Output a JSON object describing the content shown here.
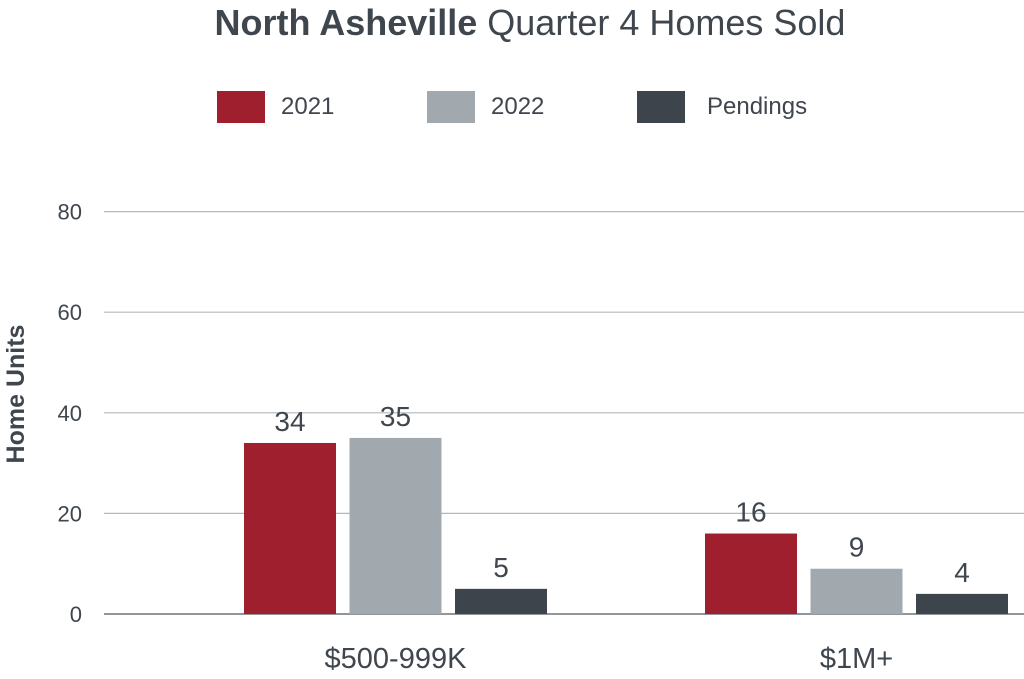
{
  "chart_data": {
    "type": "bar",
    "title_bold": "North Asheville",
    "title_rest": " Quarter 4 Homes Sold",
    "ylabel": "Home Units",
    "xlabel": "",
    "ylim": [
      0,
      80
    ],
    "yticks": [
      "0",
      "20",
      "40",
      "60",
      "80"
    ],
    "categories": [
      "$500-999K",
      "$1M+"
    ],
    "series": [
      {
        "name": "2021",
        "color": "#a01f2f",
        "values": [
          34,
          16
        ],
        "labels": [
          "34",
          "16"
        ]
      },
      {
        "name": "2022",
        "color": "#a1a9ae",
        "values": [
          35,
          9
        ],
        "labels": [
          "35",
          "9"
        ]
      },
      {
        "name": "Pendings",
        "color": "#3d444b",
        "values": [
          5,
          4
        ],
        "labels": [
          "5",
          "4"
        ]
      }
    ],
    "grid": true,
    "legend_position": "top"
  }
}
